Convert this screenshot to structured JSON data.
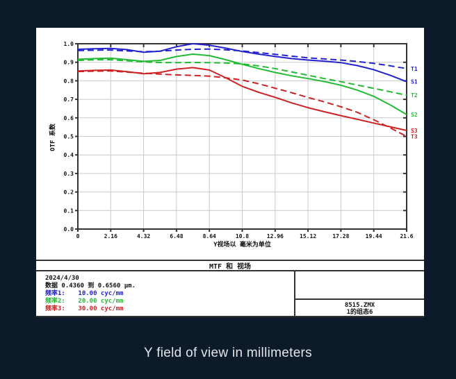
{
  "caption": "Y field of view in millimeters",
  "colors": {
    "background": "#0d1a29",
    "panel": "#ffffff",
    "grid": "#c9c9c9",
    "frame": "#333333",
    "blue": "#2222cc",
    "green": "#22bb33",
    "red": "#cc2222"
  },
  "chart_data": {
    "type": "line",
    "title": "MTF 和 视场",
    "xlabel": "Y视场以 毫米为单位",
    "ylabel": "OTF 系数",
    "xlim": [
      0,
      21.6
    ],
    "ylim": [
      0.0,
      1.0
    ],
    "grid": true,
    "legend_position": "right-edge-labels",
    "x_ticks": [
      "0",
      "2.16",
      "4.32",
      "6.48",
      "8.64",
      "10.8",
      "12.96",
      "15.12",
      "17.28",
      "19.44",
      "21.6"
    ],
    "y_ticks": [
      "0.0",
      "0.1",
      "0.2",
      "0.3",
      "0.4",
      "0.5",
      "0.6",
      "0.7",
      "0.8",
      "0.9",
      "1.0"
    ],
    "x": [
      0,
      1.08,
      2.16,
      3.24,
      4.32,
      5.4,
      6.48,
      7.56,
      8.64,
      9.72,
      10.8,
      11.88,
      12.96,
      14.04,
      15.12,
      16.2,
      17.28,
      18.36,
      19.44,
      20.52,
      21.6
    ],
    "series": [
      {
        "name": "T1",
        "color": "#2222cc",
        "style": "dashed",
        "values": [
          0.963,
          0.965,
          0.966,
          0.961,
          0.957,
          0.96,
          0.966,
          0.97,
          0.971,
          0.967,
          0.961,
          0.952,
          0.943,
          0.933,
          0.924,
          0.918,
          0.912,
          0.904,
          0.894,
          0.881,
          0.866
        ]
      },
      {
        "name": "S1",
        "color": "#2222cc",
        "style": "solid",
        "values": [
          0.97,
          0.973,
          0.975,
          0.968,
          0.954,
          0.96,
          0.984,
          1.0,
          0.992,
          0.976,
          0.958,
          0.944,
          0.931,
          0.92,
          0.912,
          0.906,
          0.898,
          0.882,
          0.86,
          0.83,
          0.795
        ]
      },
      {
        "name": "T2",
        "color": "#22bb33",
        "style": "dashed",
        "values": [
          0.91,
          0.913,
          0.914,
          0.908,
          0.902,
          0.899,
          0.898,
          0.899,
          0.898,
          0.896,
          0.891,
          0.88,
          0.866,
          0.848,
          0.83,
          0.812,
          0.795,
          0.777,
          0.759,
          0.741,
          0.722
        ]
      },
      {
        "name": "S2",
        "color": "#22bb33",
        "style": "solid",
        "values": [
          0.916,
          0.92,
          0.922,
          0.914,
          0.905,
          0.91,
          0.931,
          0.944,
          0.936,
          0.914,
          0.889,
          0.866,
          0.845,
          0.827,
          0.812,
          0.796,
          0.776,
          0.75,
          0.716,
          0.67,
          0.618
        ]
      },
      {
        "name": "S3",
        "color": "#cc2222",
        "style": "solid",
        "values": [
          0.853,
          0.856,
          0.858,
          0.849,
          0.838,
          0.845,
          0.863,
          0.871,
          0.858,
          0.816,
          0.77,
          0.738,
          0.711,
          0.681,
          0.655,
          0.633,
          0.612,
          0.592,
          0.572,
          0.552,
          0.532
        ]
      },
      {
        "name": "T3",
        "color": "#cc2222",
        "style": "dashed",
        "values": [
          0.85,
          0.852,
          0.853,
          0.847,
          0.841,
          0.836,
          0.832,
          0.829,
          0.825,
          0.816,
          0.804,
          0.784,
          0.76,
          0.736,
          0.71,
          0.686,
          0.66,
          0.63,
          0.59,
          0.546,
          0.5
        ]
      }
    ]
  },
  "info": {
    "date": "2024/4/30",
    "wavelength_range": "数据 0.4360 到 0.6560 µm.",
    "frequencies": [
      {
        "label": "频率1:",
        "value": "10.00 cyc/mm",
        "color": "#2222cc"
      },
      {
        "label": "频率2:",
        "value": "20.00 cyc/mm",
        "color": "#22bb33"
      },
      {
        "label": "频率3:",
        "value": "30.00 cyc/mm",
        "color": "#cc2222"
      }
    ],
    "file_name": "8515.ZMX",
    "configuration": "1的组态6"
  }
}
